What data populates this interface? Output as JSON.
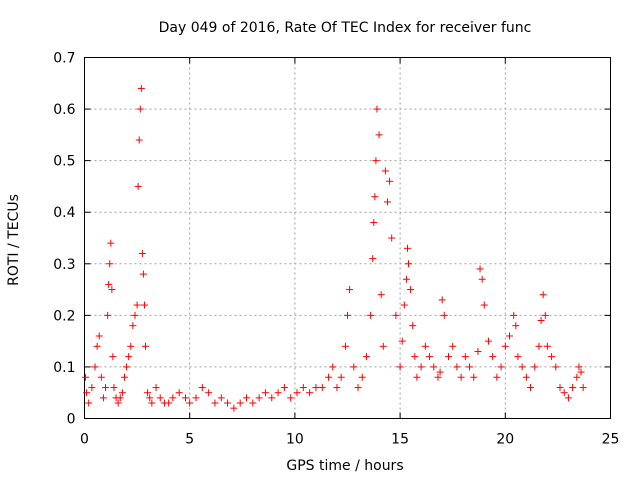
{
  "chart_data": {
    "type": "scatter",
    "title": "Day 049 of 2016, Rate Of TEC Index for receiver func",
    "xlabel": "GPS time / hours",
    "ylabel": "ROTI / TECUs",
    "xlim": [
      0,
      25
    ],
    "ylim": [
      0,
      0.7
    ],
    "x_ticks": [
      0,
      5,
      10,
      15,
      20,
      25
    ],
    "y_ticks": [
      0,
      0.1,
      0.2,
      0.3,
      0.4,
      0.5,
      0.6,
      0.7
    ],
    "x_tick_labels": [
      "0",
      "5",
      "10",
      "15",
      "20",
      "25"
    ],
    "y_tick_labels": [
      "0",
      "0.1",
      "0.2",
      "0.3",
      "0.4",
      "0.5",
      "0.6",
      "0.7"
    ],
    "grid": true,
    "marker": "+",
    "marker_color": "#ff0000",
    "series": [
      {
        "name": "ROTI",
        "x": [
          0.05,
          0.1,
          0.2,
          0.35,
          0.5,
          0.6,
          0.7,
          0.8,
          0.9,
          1.0,
          1.1,
          1.15,
          1.2,
          1.25,
          1.3,
          1.35,
          1.4,
          1.5,
          1.6,
          1.7,
          1.8,
          1.9,
          2.0,
          2.1,
          2.2,
          2.3,
          2.4,
          2.5,
          2.55,
          2.6,
          2.65,
          2.7,
          2.75,
          2.8,
          2.85,
          2.9,
          3.0,
          3.1,
          3.2,
          3.4,
          3.6,
          3.8,
          4.0,
          4.2,
          4.5,
          4.8,
          5.0,
          5.3,
          5.6,
          5.9,
          6.2,
          6.5,
          6.8,
          7.1,
          7.4,
          7.7,
          8.0,
          8.3,
          8.6,
          8.9,
          9.2,
          9.5,
          9.8,
          10.1,
          10.4,
          10.7,
          11.0,
          11.3,
          11.6,
          11.8,
          12.0,
          12.2,
          12.4,
          12.5,
          12.6,
          12.8,
          13.0,
          13.2,
          13.4,
          13.6,
          13.7,
          13.75,
          13.8,
          13.85,
          13.9,
          14.0,
          14.1,
          14.2,
          14.3,
          14.4,
          14.5,
          14.6,
          14.8,
          15.0,
          15.1,
          15.2,
          15.3,
          15.35,
          15.4,
          15.5,
          15.6,
          15.7,
          15.8,
          16.0,
          16.2,
          16.4,
          16.6,
          16.8,
          16.9,
          17.0,
          17.1,
          17.3,
          17.5,
          17.7,
          17.9,
          18.1,
          18.3,
          18.5,
          18.7,
          18.8,
          18.9,
          19.0,
          19.2,
          19.4,
          19.6,
          19.8,
          20.0,
          20.2,
          20.4,
          20.5,
          20.6,
          20.8,
          21.0,
          21.2,
          21.4,
          21.6,
          21.7,
          21.8,
          21.9,
          22.0,
          22.2,
          22.4,
          22.6,
          22.8,
          23.0,
          23.2,
          23.4,
          23.5,
          23.6,
          23.7
        ],
        "y": [
          0.08,
          0.05,
          0.03,
          0.06,
          0.1,
          0.14,
          0.16,
          0.08,
          0.04,
          0.06,
          0.2,
          0.26,
          0.3,
          0.34,
          0.25,
          0.12,
          0.06,
          0.04,
          0.03,
          0.04,
          0.05,
          0.08,
          0.1,
          0.12,
          0.14,
          0.18,
          0.2,
          0.22,
          0.45,
          0.54,
          0.6,
          0.64,
          0.32,
          0.28,
          0.22,
          0.14,
          0.05,
          0.04,
          0.03,
          0.06,
          0.04,
          0.03,
          0.03,
          0.04,
          0.05,
          0.04,
          0.03,
          0.04,
          0.06,
          0.05,
          0.03,
          0.04,
          0.03,
          0.02,
          0.03,
          0.04,
          0.03,
          0.04,
          0.05,
          0.04,
          0.05,
          0.06,
          0.04,
          0.05,
          0.06,
          0.05,
          0.06,
          0.06,
          0.08,
          0.1,
          0.06,
          0.08,
          0.14,
          0.2,
          0.25,
          0.1,
          0.06,
          0.08,
          0.12,
          0.2,
          0.31,
          0.38,
          0.43,
          0.5,
          0.6,
          0.55,
          0.24,
          0.14,
          0.48,
          0.42,
          0.46,
          0.35,
          0.2,
          0.1,
          0.15,
          0.22,
          0.27,
          0.33,
          0.3,
          0.25,
          0.18,
          0.12,
          0.08,
          0.1,
          0.14,
          0.12,
          0.1,
          0.08,
          0.09,
          0.23,
          0.2,
          0.12,
          0.14,
          0.1,
          0.08,
          0.12,
          0.1,
          0.08,
          0.13,
          0.29,
          0.27,
          0.22,
          0.15,
          0.12,
          0.08,
          0.1,
          0.14,
          0.16,
          0.2,
          0.18,
          0.12,
          0.1,
          0.08,
          0.06,
          0.1,
          0.14,
          0.19,
          0.24,
          0.2,
          0.14,
          0.12,
          0.1,
          0.06,
          0.05,
          0.04,
          0.06,
          0.08,
          0.1,
          0.09,
          0.06
        ]
      }
    ]
  }
}
